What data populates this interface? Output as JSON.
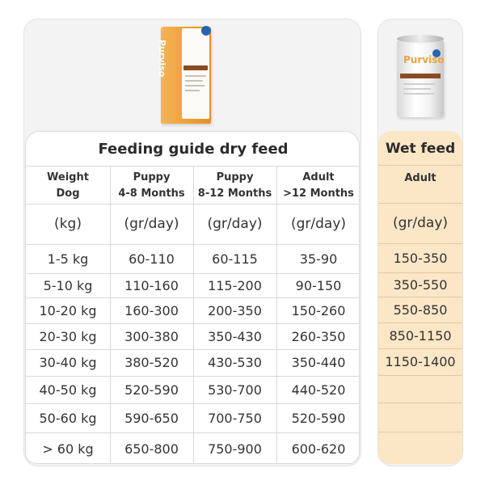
{
  "products": {
    "dry_brand": "Purviso",
    "wet_brand": "Purviso"
  },
  "dry_table": {
    "title": "Feeding guide dry feed",
    "headers": [
      [
        "Weight",
        "Dog"
      ],
      [
        "Puppy",
        "4-8 Months"
      ],
      [
        "Puppy",
        "8-12 Months"
      ],
      [
        "Adult",
        ">12 Months"
      ]
    ],
    "units": [
      "(kg)",
      "(gr/day)",
      "(gr/day)",
      "(gr/day)"
    ],
    "rows": [
      [
        "1-5 kg",
        "60-110",
        "60-115",
        "35-90"
      ],
      [
        "5-10 kg",
        "110-160",
        "115-200",
        "90-150"
      ],
      [
        "10-20 kg",
        "160-300",
        "200-350",
        "150-260"
      ],
      [
        "20-30 kg",
        "300-380",
        "350-430",
        "260-350"
      ],
      [
        "30-40 kg",
        "380-520",
        "430-530",
        "350-440"
      ],
      [
        "40-50 kg",
        "520-590",
        "530-700",
        "440-520"
      ],
      [
        "50-60 kg",
        "590-650",
        "700-750",
        "520-590"
      ],
      [
        "> 60 kg",
        "650-800",
        "750-900",
        "600-620"
      ]
    ]
  },
  "wet_table": {
    "title": "Wet feed",
    "header": "Adult",
    "unit": "(gr/day)",
    "rows": [
      "150-350",
      "350-550",
      "550-850",
      "850-1150",
      "1150-1400",
      "",
      "",
      ""
    ]
  },
  "colors": {
    "wet_background": "#fbe6c6",
    "bag_orange": "#f0a23c",
    "label_brown": "#8a4b24"
  }
}
